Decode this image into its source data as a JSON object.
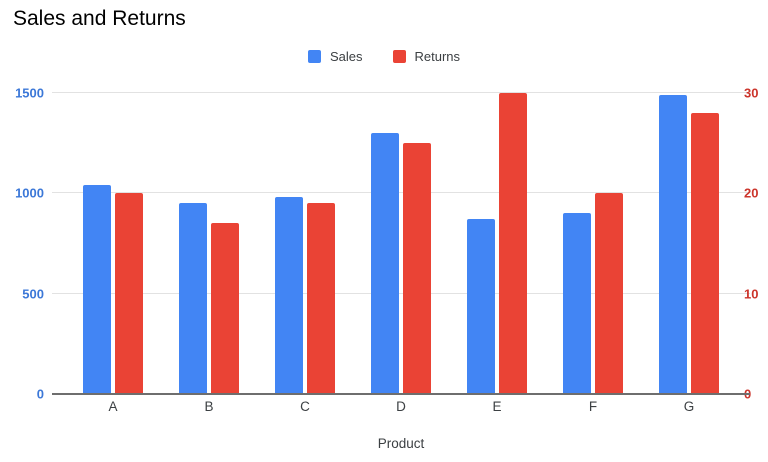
{
  "chart_data": {
    "type": "bar",
    "title": "Sales and Returns",
    "xlabel": "Product",
    "categories": [
      "A",
      "B",
      "C",
      "D",
      "E",
      "F",
      "G"
    ],
    "series": [
      {
        "name": "Sales",
        "color": "#4285F4",
        "axis": "left",
        "values": [
          1040,
          950,
          980,
          1300,
          870,
          900,
          1490
        ]
      },
      {
        "name": "Returns",
        "color": "#EA4335",
        "axis": "right",
        "values": [
          20,
          17,
          19,
          25,
          30,
          20,
          28
        ]
      }
    ],
    "axes": {
      "left": {
        "ticks": [
          0,
          500,
          1000,
          1500
        ],
        "max": 1500,
        "label_color": "#3C78D8"
      },
      "right": {
        "ticks": [
          0,
          10,
          20,
          30
        ],
        "max": 30,
        "label_color": "#CC342B"
      }
    },
    "grid": true,
    "legend_position": "top",
    "colors": {
      "gridline": "#E2E2E2",
      "baseline": "#6E6E6E",
      "title_text": "#000000",
      "axis_text": "#3C4043",
      "background": "#FFFFFF"
    }
  }
}
